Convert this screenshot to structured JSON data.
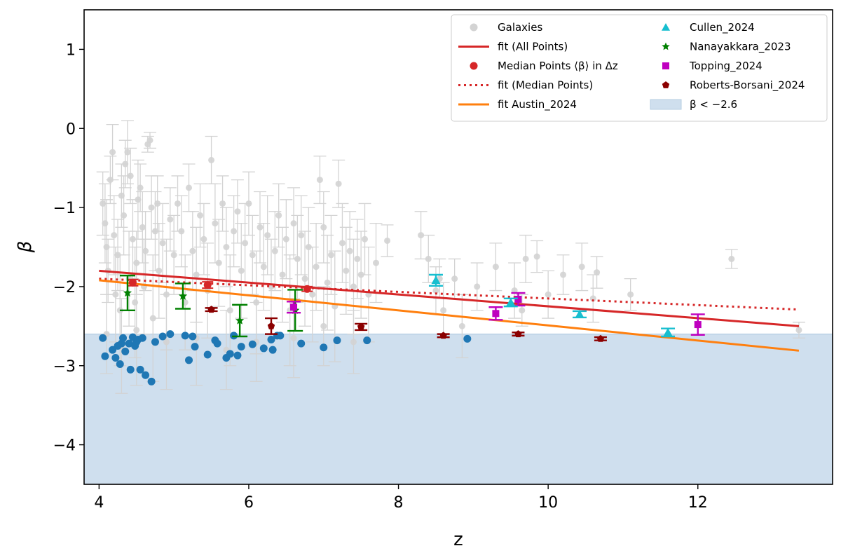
{
  "chart_data": {
    "type": "scatter",
    "xlabel": "z",
    "ylabel": "β",
    "xlim": [
      3.8,
      13.8
    ],
    "ylim": [
      -4.5,
      1.5
    ],
    "xticks": [
      4,
      6,
      8,
      10,
      12
    ],
    "yticks": [
      1,
      0,
      -1,
      -2,
      -3,
      -4
    ],
    "ytick_labels": [
      "1",
      "0",
      "−1",
      "−2",
      "−3",
      "−4"
    ],
    "grid": false,
    "legend_position": "top-right",
    "shaded_region": {
      "name": "β < −2.6",
      "y_from": -4.5,
      "y_to": -2.6,
      "color": "#cfdfee"
    },
    "legend": {
      "left": [
        {
          "label": "Galaxies",
          "kind": "marker-circle",
          "color": "#d3d3d3"
        },
        {
          "label": "fit (All Points)",
          "kind": "line-solid",
          "color": "#d62728"
        },
        {
          "label": "Median Points ⟨β⟩ in Δz",
          "kind": "marker-circle",
          "color": "#d62728"
        },
        {
          "label": "fit (Median Points)",
          "kind": "line-dotted",
          "color": "#d62728"
        },
        {
          "label": "fit Austin_2024",
          "kind": "line-solid",
          "color": "#ff7f0e"
        }
      ],
      "right": [
        {
          "label": "Cullen_2024",
          "kind": "marker-triangle",
          "color": "#17becf"
        },
        {
          "label": "Nanayakkara_2023",
          "kind": "marker-star",
          "color": "#008000"
        },
        {
          "label": "Topping_2024",
          "kind": "marker-square",
          "color": "#bf00bf"
        },
        {
          "label": "Roberts-Borsani_2024",
          "kind": "marker-pentagon",
          "color": "#8b0000"
        },
        {
          "label": "β < −2.6",
          "kind": "patch",
          "color": "#cfdfee"
        }
      ]
    },
    "fit_lines": [
      {
        "name": "fit (All Points)",
        "color": "#d62728",
        "style": "solid",
        "x": [
          4.0,
          13.35
        ],
        "y": [
          -1.8,
          -2.5
        ]
      },
      {
        "name": "fit (Median Points)",
        "color": "#d62728",
        "style": "dotted",
        "x": [
          4.0,
          13.35
        ],
        "y": [
          -1.9,
          -2.29
        ]
      },
      {
        "name": "fit Austin_2024",
        "color": "#ff7f0e",
        "style": "solid",
        "x": [
          4.0,
          13.35
        ],
        "y": [
          -1.92,
          -2.81
        ]
      }
    ],
    "galaxies": {
      "name": "Galaxies",
      "color": "#d3d3d3",
      "points": [
        [
          4.05,
          -0.95,
          0.4
        ],
        [
          4.08,
          -1.2,
          0.5
        ],
        [
          4.1,
          -1.5,
          0.6
        ],
        [
          4.12,
          -1.8,
          0.4
        ],
        [
          4.15,
          -0.65,
          0.3
        ],
        [
          4.18,
          -0.3,
          0.35
        ],
        [
          4.2,
          -1.35,
          0.5
        ],
        [
          4.22,
          -2.1,
          0.6
        ],
        [
          4.25,
          -1.6,
          0.45
        ],
        [
          4.28,
          -2.3,
          0.7
        ],
        [
          4.3,
          -0.85,
          0.4
        ],
        [
          4.33,
          -1.1,
          0.5
        ],
        [
          4.35,
          -0.45,
          0.3
        ],
        [
          4.38,
          -0.3,
          0.4
        ],
        [
          4.4,
          -1.9,
          0.6
        ],
        [
          4.42,
          -0.6,
          0.35
        ],
        [
          4.45,
          -1.4,
          0.5
        ],
        [
          4.48,
          -2.2,
          0.7
        ],
        [
          4.5,
          -1.7,
          0.4
        ],
        [
          4.52,
          -0.9,
          0.5
        ],
        [
          4.55,
          -0.75,
          0.3
        ],
        [
          4.58,
          -1.25,
          0.45
        ],
        [
          4.6,
          -2.0,
          0.6
        ],
        [
          4.62,
          -1.55,
          0.5
        ],
        [
          4.65,
          -0.2,
          0.1
        ],
        [
          4.68,
          -0.15,
          0.1
        ],
        [
          4.7,
          -1.0,
          0.4
        ],
        [
          4.72,
          -2.4,
          0.8
        ],
        [
          4.75,
          -1.3,
          0.5
        ],
        [
          4.78,
          -0.95,
          0.35
        ],
        [
          4.8,
          -1.8,
          0.6
        ],
        [
          4.85,
          -1.45,
          0.5
        ],
        [
          4.9,
          -2.1,
          0.7
        ],
        [
          4.95,
          -1.15,
          0.4
        ],
        [
          5.0,
          -1.6,
          0.5
        ],
        [
          5.05,
          -0.95,
          0.35
        ],
        [
          5.1,
          -1.3,
          0.45
        ],
        [
          5.15,
          -2.2,
          0.6
        ],
        [
          5.2,
          -0.75,
          0.3
        ],
        [
          5.25,
          -1.55,
          0.5
        ],
        [
          5.3,
          -1.85,
          0.6
        ],
        [
          5.35,
          -1.1,
          0.4
        ],
        [
          5.4,
          -1.4,
          0.45
        ],
        [
          5.45,
          -2.05,
          0.6
        ],
        [
          5.5,
          -0.4,
          0.3
        ],
        [
          5.55,
          -1.2,
          0.5
        ],
        [
          5.6,
          -1.7,
          0.55
        ],
        [
          5.65,
          -0.95,
          0.35
        ],
        [
          5.7,
          -1.5,
          0.5
        ],
        [
          5.75,
          -2.3,
          0.7
        ],
        [
          5.8,
          -1.3,
          0.45
        ],
        [
          5.85,
          -1.05,
          0.4
        ],
        [
          5.9,
          -1.8,
          0.6
        ],
        [
          5.95,
          -1.45,
          0.5
        ],
        [
          6.0,
          -0.95,
          0.4
        ],
        [
          6.05,
          -1.6,
          0.5
        ],
        [
          6.1,
          -2.2,
          0.65
        ],
        [
          6.15,
          -1.25,
          0.45
        ],
        [
          6.2,
          -1.75,
          0.55
        ],
        [
          6.25,
          -1.35,
          0.5
        ],
        [
          6.3,
          -2.0,
          0.6
        ],
        [
          6.35,
          -1.55,
          0.5
        ],
        [
          6.4,
          -1.1,
          0.4
        ],
        [
          6.45,
          -1.85,
          0.6
        ],
        [
          6.5,
          -1.4,
          0.5
        ],
        [
          6.55,
          -2.3,
          0.7
        ],
        [
          6.6,
          -1.2,
          0.45
        ],
        [
          6.65,
          -1.65,
          0.55
        ],
        [
          6.7,
          -1.35,
          0.5
        ],
        [
          6.75,
          -1.9,
          0.6
        ],
        [
          6.8,
          -1.5,
          0.5
        ],
        [
          6.85,
          -2.1,
          0.6
        ],
        [
          6.9,
          -1.75,
          0.55
        ],
        [
          6.95,
          -0.65,
          0.3
        ],
        [
          7.0,
          -1.25,
          0.45
        ],
        [
          7.05,
          -1.95,
          0.6
        ],
        [
          7.1,
          -1.6,
          0.5
        ],
        [
          7.15,
          -2.25,
          0.7
        ],
        [
          7.2,
          -0.7,
          0.3
        ],
        [
          7.25,
          -1.45,
          0.5
        ],
        [
          7.3,
          -1.8,
          0.55
        ],
        [
          7.35,
          -1.55,
          0.5
        ],
        [
          7.4,
          -2.0,
          0.6
        ],
        [
          7.45,
          -1.65,
          0.5
        ],
        [
          7.5,
          -1.85,
          0.55
        ],
        [
          7.55,
          -1.4,
          0.45
        ],
        [
          7.6,
          -2.1,
          0.6
        ],
        [
          7.7,
          -1.7,
          0.5
        ],
        [
          7.85,
          -1.42,
          0.2
        ],
        [
          8.3,
          -1.35,
          0.3
        ],
        [
          8.4,
          -1.65,
          0.3
        ],
        [
          8.5,
          -2.05,
          0.3
        ],
        [
          8.6,
          -2.3,
          0.35
        ],
        [
          8.75,
          -1.9,
          0.25
        ],
        [
          8.85,
          -2.5,
          0.4
        ],
        [
          9.05,
          -2.0,
          0.3
        ],
        [
          9.3,
          -1.75,
          0.3
        ],
        [
          9.55,
          -2.05,
          0.35
        ],
        [
          9.7,
          -1.65,
          0.3
        ],
        [
          9.85,
          -1.62,
          0.2
        ],
        [
          10.0,
          -2.1,
          0.3
        ],
        [
          10.2,
          -1.85,
          0.25
        ],
        [
          10.45,
          -1.75,
          0.3
        ],
        [
          10.6,
          -2.15,
          0.3
        ],
        [
          10.65,
          -1.82,
          0.2
        ],
        [
          11.1,
          -2.1,
          0.2
        ],
        [
          12.45,
          -1.65,
          0.12
        ],
        [
          13.35,
          -2.55,
          0.1
        ],
        [
          8.55,
          -1.9,
          0.25
        ],
        [
          9.65,
          -2.3,
          0.2
        ],
        [
          4.1,
          -2.6,
          0.5
        ],
        [
          4.3,
          -2.75,
          0.6
        ],
        [
          4.5,
          -2.55,
          0.7
        ],
        [
          4.9,
          -2.7,
          0.6
        ],
        [
          5.3,
          -2.65,
          0.6
        ],
        [
          5.7,
          -2.8,
          0.5
        ],
        [
          6.1,
          -2.7,
          0.5
        ],
        [
          6.6,
          -2.65,
          0.5
        ],
        [
          7.0,
          -2.5,
          0.5
        ],
        [
          7.4,
          -2.7,
          0.4
        ]
      ]
    },
    "blue_points": {
      "name": "",
      "color": "#1f77b4",
      "points": [
        [
          4.05,
          -2.65
        ],
        [
          4.08,
          -2.88
        ],
        [
          4.18,
          -2.8
        ],
        [
          4.22,
          -2.9
        ],
        [
          4.25,
          -2.75
        ],
        [
          4.28,
          -2.98
        ],
        [
          4.3,
          -2.72
        ],
        [
          4.32,
          -2.65
        ],
        [
          4.35,
          -2.82
        ],
        [
          4.4,
          -2.72
        ],
        [
          4.42,
          -3.05
        ],
        [
          4.45,
          -2.64
        ],
        [
          4.48,
          -2.75
        ],
        [
          4.5,
          -2.7
        ],
        [
          4.52,
          -2.67
        ],
        [
          4.55,
          -3.05
        ],
        [
          4.58,
          -2.65
        ],
        [
          4.62,
          -3.12
        ],
        [
          4.7,
          -3.2
        ],
        [
          4.75,
          -2.7
        ],
        [
          4.85,
          -2.63
        ],
        [
          4.95,
          -2.6
        ],
        [
          5.15,
          -2.62
        ],
        [
          5.2,
          -2.93
        ],
        [
          5.25,
          -2.63
        ],
        [
          5.28,
          -2.76
        ],
        [
          5.45,
          -2.86
        ],
        [
          5.55,
          -2.68
        ],
        [
          5.58,
          -2.72
        ],
        [
          5.7,
          -2.9
        ],
        [
          5.75,
          -2.85
        ],
        [
          5.8,
          -2.62
        ],
        [
          5.85,
          -2.87
        ],
        [
          5.9,
          -2.76
        ],
        [
          6.05,
          -2.73
        ],
        [
          6.2,
          -2.78
        ],
        [
          6.3,
          -2.67
        ],
        [
          6.32,
          -2.8
        ],
        [
          6.38,
          -2.62
        ],
        [
          6.42,
          -2.62
        ],
        [
          6.7,
          -2.72
        ],
        [
          7.0,
          -2.77
        ],
        [
          7.18,
          -2.68
        ],
        [
          7.58,
          -2.68
        ],
        [
          8.92,
          -2.66
        ]
      ]
    },
    "median_points": {
      "name": "Median Points ⟨β⟩ in Δz",
      "color": "#d62728",
      "points": [
        [
          4.45,
          -1.95,
          0.04
        ],
        [
          5.45,
          -1.98,
          0.04
        ],
        [
          6.78,
          -2.03,
          0.03
        ]
      ]
    },
    "cullen_2024": {
      "name": "Cullen_2024",
      "color": "#17becf",
      "points": [
        [
          8.5,
          -1.92,
          0.07
        ],
        [
          9.5,
          -2.2,
          0.05
        ],
        [
          10.42,
          -2.35,
          0.04
        ],
        [
          11.6,
          -2.58,
          0.05
        ]
      ]
    },
    "nanayakkara_2023": {
      "name": "Nanayakkara_2023",
      "color": "#008000",
      "points": [
        [
          4.38,
          -2.08,
          0.22
        ],
        [
          5.12,
          -2.12,
          0.16
        ],
        [
          5.88,
          -2.43,
          0.2
        ],
        [
          6.62,
          -2.3,
          0.26
        ]
      ]
    },
    "topping_2024": {
      "name": "Topping_2024",
      "color": "#bf00bf",
      "points": [
        [
          6.6,
          -2.26,
          0.07
        ],
        [
          9.3,
          -2.34,
          0.08
        ],
        [
          9.6,
          -2.16,
          0.08
        ],
        [
          12.0,
          -2.48,
          0.13
        ]
      ]
    },
    "roberts_borsani_2024": {
      "name": "Roberts-Borsani_2024",
      "color": "#8b0000",
      "points": [
        [
          5.5,
          -2.29,
          0.02
        ],
        [
          6.3,
          -2.5,
          0.1
        ],
        [
          7.5,
          -2.51,
          0.04
        ],
        [
          8.6,
          -2.62,
          0.02
        ],
        [
          9.6,
          -2.6,
          0.02
        ],
        [
          10.7,
          -2.66,
          0.02
        ]
      ]
    }
  }
}
